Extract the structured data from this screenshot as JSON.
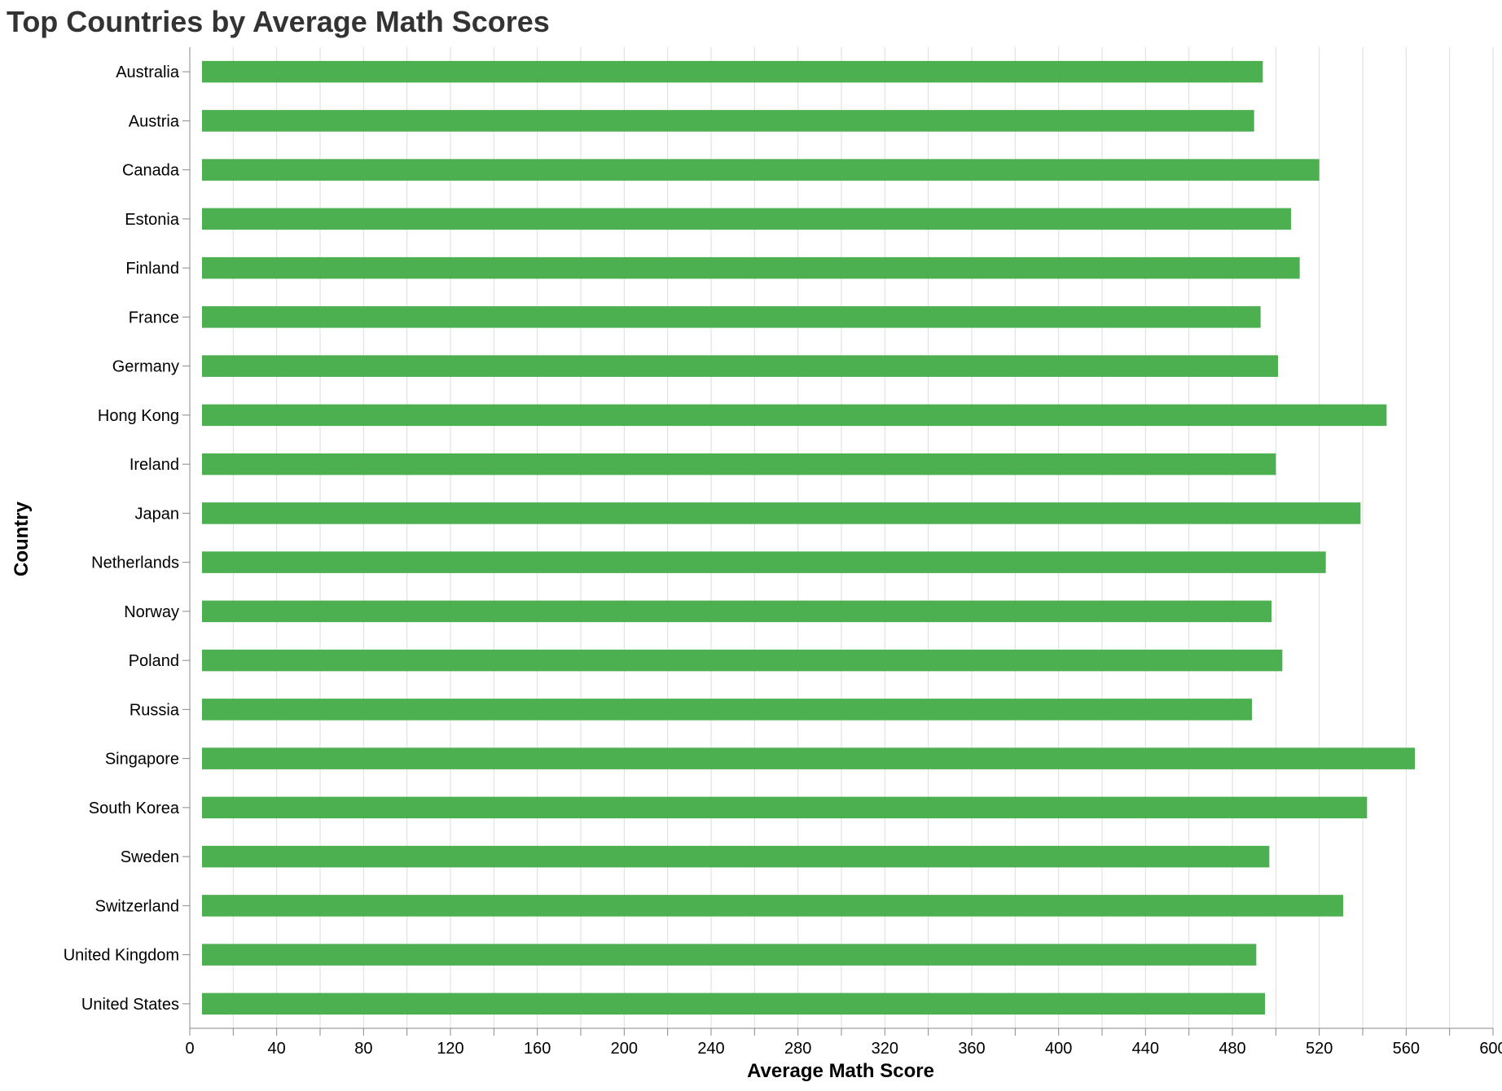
{
  "chart_data": {
    "type": "bar",
    "orientation": "horizontal",
    "title": "Top Countries by Average Math Scores",
    "xlabel": "Average Math Score",
    "ylabel": "Country",
    "xlim": [
      0,
      600
    ],
    "x_ticks": [
      "0",
      "40",
      "80",
      "120",
      "160",
      "200",
      "240",
      "280",
      "320",
      "360",
      "400",
      "440",
      "480",
      "520",
      "560",
      "600"
    ],
    "grid": "vertical",
    "bar_color": "#4CAF50",
    "categories": [
      "Australia",
      "Austria",
      "Canada",
      "Estonia",
      "Finland",
      "France",
      "Germany",
      "Hong Kong",
      "Ireland",
      "Japan",
      "Netherlands",
      "Norway",
      "Poland",
      "Russia",
      "Singapore",
      "South Korea",
      "Sweden",
      "Switzerland",
      "United Kingdom",
      "United States"
    ],
    "values": [
      494,
      490,
      520,
      507,
      511,
      493,
      501,
      551,
      500,
      539,
      523,
      498,
      503,
      489,
      564,
      542,
      497,
      531,
      491,
      495
    ]
  }
}
